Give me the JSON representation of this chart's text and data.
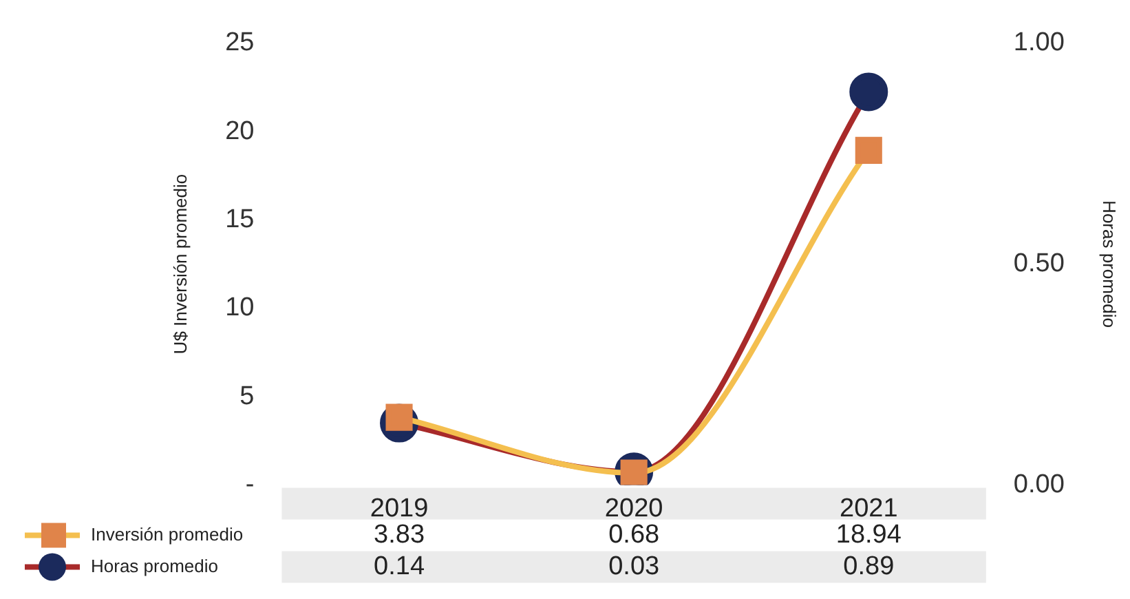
{
  "chart_data": {
    "type": "line",
    "ylabel": "U$ Inversión promedio",
    "y2label": "Horas promedio",
    "categories": [
      "2019",
      "2020",
      "2021"
    ],
    "series": [
      {
        "name": "Inversión promedio",
        "color": "#f4bf4f",
        "colors": [
          "#e0844a",
          "#e0844a",
          "#e0844a"
        ],
        "marker": "square",
        "values": [
          3.83,
          0.68,
          18.94
        ]
      },
      {
        "name": "Horas promedio",
        "color": "#a82a2a",
        "colors": [
          "#1b2a5c",
          "#1b2a5c",
          "#1b2a5c"
        ],
        "marker": "circle",
        "axis": "y2",
        "values": [
          0.14,
          0.03,
          0.89
        ]
      }
    ],
    "ylim": [
      0,
      25
    ],
    "yticks": [
      {
        "value": 0,
        "label": "-"
      },
      5,
      10,
      15,
      20,
      25
    ],
    "y2lim": [
      0,
      1
    ],
    "y2ticks": [
      {
        "value": 0,
        "label": "0.00"
      },
      {
        "value": 0.5,
        "label": "0.50"
      },
      {
        "value": 1,
        "label": "1.00"
      }
    ],
    "data_labels": true,
    "legend": "bottom left",
    "grid": false
  }
}
